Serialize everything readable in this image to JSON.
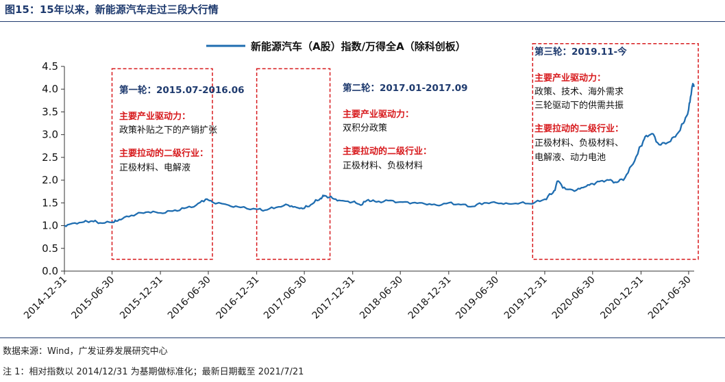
{
  "figure": {
    "title": "图15：15年以来，新能源汽车走过三段大行情",
    "source": "数据来源：Wind，广发证券发展研究中心",
    "note": "注 1：相对指数以 2014/12/31 为基期做标准化；最新日期截至 2021/7/21"
  },
  "colors": {
    "line": "#1f6db0",
    "annotation_box": "#d7191c",
    "period_title": "#1e3a6e",
    "driver_heading": "#d7191c",
    "title": "#1e3a6e"
  },
  "chart_data": {
    "type": "line",
    "legend_position": "top",
    "grid": false,
    "ylim": [
      0.0,
      4.5
    ],
    "yticks": [
      "0.0",
      "0.5",
      "1.0",
      "1.5",
      "2.0",
      "2.5",
      "3.0",
      "3.5",
      "4.0",
      "4.5"
    ],
    "xlim": [
      "2014-12-31",
      "2021-07-21"
    ],
    "xticks": [
      "2014-12-31",
      "2015-06-30",
      "2015-12-31",
      "2016-06-30",
      "2016-12-31",
      "2017-06-30",
      "2017-12-31",
      "2018-06-30",
      "2018-12-31",
      "2019-06-30",
      "2019-12-31",
      "2020-06-30",
      "2020-12-31",
      "2021-06-30"
    ],
    "series": [
      {
        "name": "新能源汽车（A股）指数/万得全A（除科创板）",
        "points": [
          [
            "2014-12-31",
            1.0
          ],
          [
            "2015-01-31",
            1.05
          ],
          [
            "2015-03-15",
            1.08
          ],
          [
            "2015-04-15",
            1.1
          ],
          [
            "2015-05-15",
            1.06
          ],
          [
            "2015-06-30",
            1.07
          ],
          [
            "2015-07-15",
            1.1
          ],
          [
            "2015-08-15",
            1.18
          ],
          [
            "2015-09-30",
            1.25
          ],
          [
            "2015-11-15",
            1.3
          ],
          [
            "2015-12-31",
            1.28
          ],
          [
            "2016-02-15",
            1.32
          ],
          [
            "2016-03-31",
            1.38
          ],
          [
            "2016-05-15",
            1.45
          ],
          [
            "2016-06-20",
            1.58
          ],
          [
            "2016-07-15",
            1.52
          ],
          [
            "2016-09-15",
            1.45
          ],
          [
            "2016-10-31",
            1.4
          ],
          [
            "2016-12-31",
            1.36
          ],
          [
            "2017-01-31",
            1.34
          ],
          [
            "2017-03-15",
            1.4
          ],
          [
            "2017-04-30",
            1.45
          ],
          [
            "2017-05-31",
            1.4
          ],
          [
            "2017-06-30",
            1.38
          ],
          [
            "2017-07-31",
            1.48
          ],
          [
            "2017-08-31",
            1.6
          ],
          [
            "2017-09-15",
            1.66
          ],
          [
            "2017-10-15",
            1.6
          ],
          [
            "2017-11-15",
            1.55
          ],
          [
            "2017-12-31",
            1.52
          ],
          [
            "2018-01-31",
            1.45
          ],
          [
            "2018-02-28",
            1.57
          ],
          [
            "2018-03-31",
            1.52
          ],
          [
            "2018-05-15",
            1.55
          ],
          [
            "2018-06-30",
            1.52
          ],
          [
            "2018-08-15",
            1.5
          ],
          [
            "2018-09-30",
            1.48
          ],
          [
            "2018-11-15",
            1.45
          ],
          [
            "2018-12-31",
            1.5
          ],
          [
            "2019-02-15",
            1.46
          ],
          [
            "2019-03-31",
            1.42
          ],
          [
            "2019-05-15",
            1.5
          ],
          [
            "2019-06-30",
            1.5
          ],
          [
            "2019-08-15",
            1.48
          ],
          [
            "2019-09-30",
            1.5
          ],
          [
            "2019-11-15",
            1.48
          ],
          [
            "2019-12-31",
            1.58
          ],
          [
            "2020-01-31",
            1.72
          ],
          [
            "2020-02-20",
            1.98
          ],
          [
            "2020-03-20",
            1.8
          ],
          [
            "2020-04-30",
            1.78
          ],
          [
            "2020-05-31",
            1.85
          ],
          [
            "2020-06-30",
            1.92
          ],
          [
            "2020-07-31",
            1.98
          ],
          [
            "2020-08-31",
            2.0
          ],
          [
            "2020-09-30",
            1.95
          ],
          [
            "2020-10-31",
            2.05
          ],
          [
            "2020-11-30",
            2.35
          ],
          [
            "2020-12-31",
            2.75
          ],
          [
            "2021-01-15",
            2.95
          ],
          [
            "2021-02-10",
            3.02
          ],
          [
            "2021-03-10",
            2.78
          ],
          [
            "2021-04-10",
            2.82
          ],
          [
            "2021-05-10",
            2.95
          ],
          [
            "2021-06-10",
            3.25
          ],
          [
            "2021-06-30",
            3.55
          ],
          [
            "2021-07-12",
            4.0
          ],
          [
            "2021-07-16",
            4.12
          ],
          [
            "2021-07-21",
            4.05
          ]
        ]
      }
    ],
    "annotations": [
      {
        "id": "period-1",
        "box": [
          "2015-06-30",
          "2016-06-30",
          0.2,
          4.45
        ],
        "title": "第一轮：2015.07-2016.06",
        "drivers_label": "主要产业驱动力：",
        "drivers": [
          "政策补贴之下的产销扩张"
        ],
        "sectors_label": "主要拉动的二级行业：",
        "sectors": [
          "正极材料、电解液"
        ]
      },
      {
        "id": "period-2",
        "box": [
          "2016-12-31",
          "2017-09-20",
          0.2,
          4.45
        ],
        "title": "第二轮：2017.01-2017.09",
        "drivers_label": "主要产业驱动力：",
        "drivers": [
          "双积分政策"
        ],
        "sectors_label": "主要拉动的二级行业：",
        "sectors": [
          "正极材料、负极材料"
        ]
      },
      {
        "id": "period-3",
        "box": [
          "2019-11-15",
          "2021-07-21",
          0.2,
          5.0
        ],
        "title": "第三轮：2019.11-今",
        "drivers_label": "主要产业驱动力：",
        "drivers": [
          "政策、技术、海外需求",
          "三轮驱动下的供需共振"
        ],
        "sectors_label": "主要拉动的二级行业：",
        "sectors": [
          "正极材料、负极材料、",
          "电解液、动力电池"
        ]
      }
    ]
  }
}
